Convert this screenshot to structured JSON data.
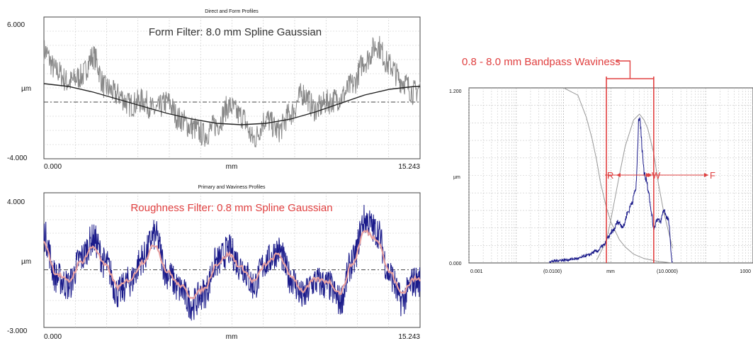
{
  "colors": {
    "top_profile": "#888888",
    "top_form_line": "#222222",
    "bottom_profile": "#1a1a8a",
    "bottom_waviness_line": "#e8a0a0",
    "spectrum_line": "#1a1a8a",
    "filter_curve": "#999999",
    "annotation_red": "#e04040",
    "grid": "#c8c8c8"
  },
  "chart_data": [
    {
      "type": "line",
      "title": "Direct and Form Profiles",
      "annotation": "Form Filter: 8.0 mm Spline Gaussian",
      "xlabel": "mm",
      "ylabel": "µm",
      "x_start_label": "0.000",
      "x_end_label": "15.243",
      "y_top_label": "6.000",
      "y_bottom_label": "-4.000",
      "xlim": [
        0,
        15.243
      ],
      "ylim": [
        -4,
        6
      ],
      "grid": true,
      "series": [
        {
          "role": "direct-profile",
          "x": [
            0,
            0.5,
            1,
            1.5,
            2,
            2.5,
            3,
            3.5,
            4,
            4.5,
            5,
            5.5,
            6,
            6.5,
            7,
            7.5,
            8,
            8.5,
            9,
            9.5,
            10,
            10.5,
            11,
            11.5,
            12,
            12.5,
            13,
            13.5,
            14,
            14.5,
            15,
            15.243
          ],
          "y": [
            3.6,
            2.2,
            1.4,
            1.8,
            3.2,
            1.0,
            0.5,
            -0.2,
            0.1,
            -0.6,
            0.0,
            -1.2,
            -1.8,
            -2.3,
            -1.6,
            -0.3,
            -1.0,
            -2.6,
            -1.2,
            -2.0,
            -0.8,
            0.6,
            -0.5,
            0.0,
            0.3,
            1.2,
            2.9,
            4.0,
            2.6,
            1.5,
            0.7,
            1.0
          ]
        },
        {
          "role": "form-line",
          "x": [
            0,
            1,
            2,
            3,
            4,
            5,
            6,
            7,
            8,
            9,
            10,
            11,
            12,
            13,
            14,
            15,
            15.243
          ],
          "y": [
            1.3,
            1.1,
            0.7,
            0.2,
            -0.3,
            -0.8,
            -1.2,
            -1.5,
            -1.6,
            -1.5,
            -1.2,
            -0.7,
            -0.1,
            0.5,
            0.9,
            1.1,
            1.1
          ]
        }
      ]
    },
    {
      "type": "line",
      "title": "Primary and Waviness Profiles",
      "annotation": "Roughness Filter: 0.8 mm Spline Gaussian",
      "xlabel": "mm",
      "ylabel": "µm",
      "x_start_label": "0.000",
      "x_end_label": "15.243",
      "y_top_label": "4.000",
      "y_bottom_label": "-3.000",
      "xlim": [
        0,
        15.243
      ],
      "ylim": [
        -3,
        4
      ],
      "grid": true,
      "series": [
        {
          "role": "primary-profile",
          "x": [
            0,
            0.5,
            1,
            1.5,
            2,
            2.5,
            3,
            3.5,
            4,
            4.5,
            5,
            5.5,
            6,
            6.5,
            7,
            7.5,
            8,
            8.5,
            9,
            9.5,
            10,
            10.5,
            11,
            11.5,
            12,
            12.5,
            13,
            13.5,
            14,
            14.5,
            15,
            15.243
          ],
          "y": [
            1.8,
            -0.4,
            -0.8,
            0.6,
            1.6,
            0.3,
            -1.2,
            -0.6,
            0.6,
            1.8,
            -0.2,
            -1.0,
            -1.8,
            -1.2,
            0.4,
            1.0,
            0.2,
            -0.8,
            0.4,
            1.0,
            -0.4,
            -1.4,
            -0.6,
            -0.8,
            -1.6,
            0.4,
            2.6,
            2.0,
            -0.2,
            -1.6,
            -0.6,
            -0.6
          ]
        },
        {
          "role": "waviness-line",
          "x": [
            0,
            0.5,
            1,
            1.5,
            2,
            2.5,
            3,
            3.5,
            4,
            4.5,
            5,
            5.5,
            6,
            6.5,
            7,
            7.5,
            8,
            8.5,
            9,
            9.5,
            10,
            10.5,
            11,
            11.5,
            12,
            12.5,
            13,
            13.5,
            14,
            14.5,
            15,
            15.243
          ],
          "y": [
            1.4,
            -0.2,
            -0.6,
            0.4,
            1.2,
            0.2,
            -0.9,
            -0.5,
            0.4,
            1.3,
            -0.1,
            -0.8,
            -1.4,
            -1.0,
            0.3,
            0.8,
            0.1,
            -0.6,
            0.3,
            0.8,
            -0.3,
            -1.1,
            -0.5,
            -0.6,
            -1.2,
            0.3,
            2.0,
            1.6,
            -0.1,
            -1.2,
            -0.5,
            -0.5
          ]
        }
      ]
    },
    {
      "type": "line",
      "title": "",
      "annotation": "0.8 - 8.0 mm Bandpass Waviness",
      "xlabel": "mm",
      "ylabel": "µm",
      "x_scale": "log",
      "xlim": [
        0.001,
        1000
      ],
      "ylim": [
        0,
        1.2
      ],
      "grid": true,
      "x_tick_labels": [
        "0.001",
        "(0.0100)",
        "mm",
        "(10.0000)",
        "1000"
      ],
      "y_top_label": "1.200",
      "y_bottom_label": "0.000",
      "band_labels": {
        "r": "R",
        "w": "W",
        "f": "F"
      },
      "band_limits_mm": [
        0.8,
        8.0
      ],
      "series": [
        {
          "role": "spectrum",
          "x": [
            0.05,
            0.1,
            0.2,
            0.3,
            0.5,
            0.7,
            0.9,
            1.1,
            1.4,
            1.8,
            2.3,
            2.8,
            3.3,
            4.0,
            4.6,
            5.0,
            5.5,
            6.2,
            7.0,
            8.0,
            9.5,
            11,
            13,
            16,
            20
          ],
          "y": [
            0.01,
            0.02,
            0.03,
            0.05,
            0.08,
            0.12,
            0.18,
            0.22,
            0.28,
            0.25,
            0.35,
            0.42,
            0.5,
            1.02,
            0.78,
            0.62,
            0.58,
            0.5,
            0.36,
            0.24,
            0.3,
            0.28,
            0.36,
            0.3,
            0.0
          ]
        },
        {
          "role": "roughness-cutoff-curve",
          "x": [
            0.1,
            0.2,
            0.3,
            0.4,
            0.5,
            0.6,
            0.8,
            1.0,
            1.5,
            2.0,
            3.0,
            5.0,
            10.0,
            20.0
          ],
          "y": [
            1.2,
            1.15,
            1.0,
            0.85,
            0.7,
            0.55,
            0.38,
            0.28,
            0.16,
            0.11,
            0.06,
            0.03,
            0.01,
            0.0
          ]
        },
        {
          "role": "waviness-cutoff-curve",
          "x": [
            0.5,
            0.8,
            1.0,
            1.5,
            2.0,
            3.0,
            4.0,
            5.0,
            6.0,
            8.0,
            10.0,
            13.0,
            20.0
          ],
          "y": [
            0.02,
            0.15,
            0.3,
            0.6,
            0.8,
            0.98,
            1.02,
            0.98,
            0.92,
            0.75,
            0.55,
            0.35,
            0.1
          ]
        }
      ]
    }
  ]
}
